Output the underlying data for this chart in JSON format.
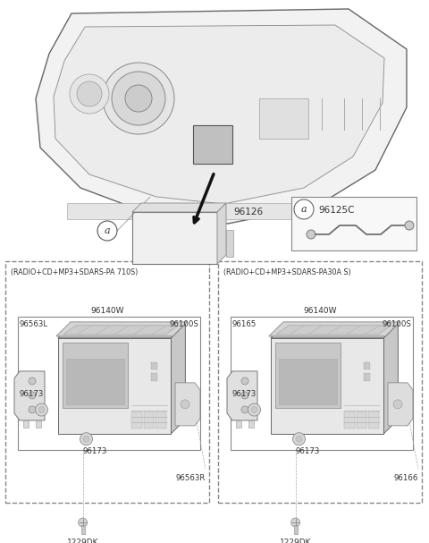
{
  "bg_color": "#ffffff",
  "line_color": "#555555",
  "left_box_title": "(RADIO+CD+MP3+SDARS-PA 710S)",
  "right_box_title": "(RADIO+CD+MP3+SDARS-PA30A S)",
  "left_labels": {
    "top_center": "96140W",
    "top_left": "96563L",
    "top_right": "96100S",
    "mid_left": "96173",
    "bot_center": "96173",
    "bot_right": "96563R",
    "screw": "1229DK"
  },
  "right_labels": {
    "top_center": "96140W",
    "top_left": "96165",
    "top_right": "96100S",
    "mid_left": "96173",
    "bot_center": "96173",
    "bot_right": "96166",
    "screw": "1229DK"
  },
  "part_96126": "96126",
  "part_96125C": "96125C",
  "label_a": "a"
}
